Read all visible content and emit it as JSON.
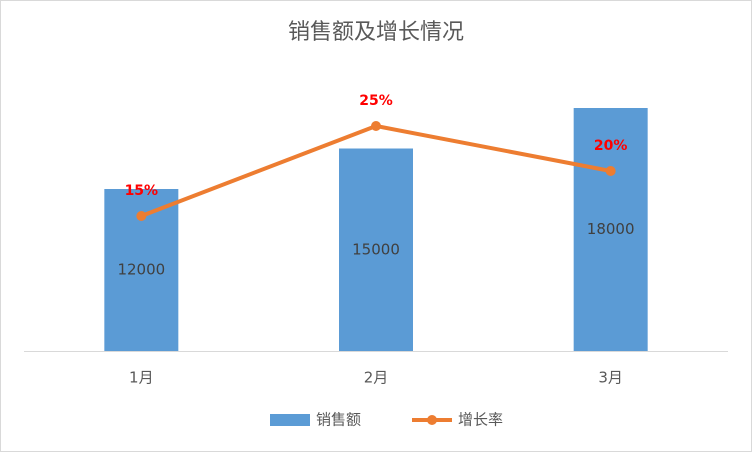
{
  "chart_data": {
    "type": "bar-line",
    "title": "销售额及增长情况",
    "categories": [
      "1月",
      "2月",
      "3月"
    ],
    "ylim": [
      0,
      20000
    ],
    "y2lim": [
      0,
      30
    ],
    "legend": "bottom",
    "series": [
      {
        "name": "销售额",
        "type": "bar",
        "color": "#5b9bd5",
        "values": [
          12000,
          15000,
          18000
        ]
      },
      {
        "name": "增长率",
        "type": "line",
        "axis": "y2",
        "color": "#ed7d31",
        "values": [
          15,
          25,
          20
        ],
        "value_labels": [
          "15%",
          "25%",
          "20%"
        ],
        "label_color": "#ff0000"
      }
    ]
  }
}
